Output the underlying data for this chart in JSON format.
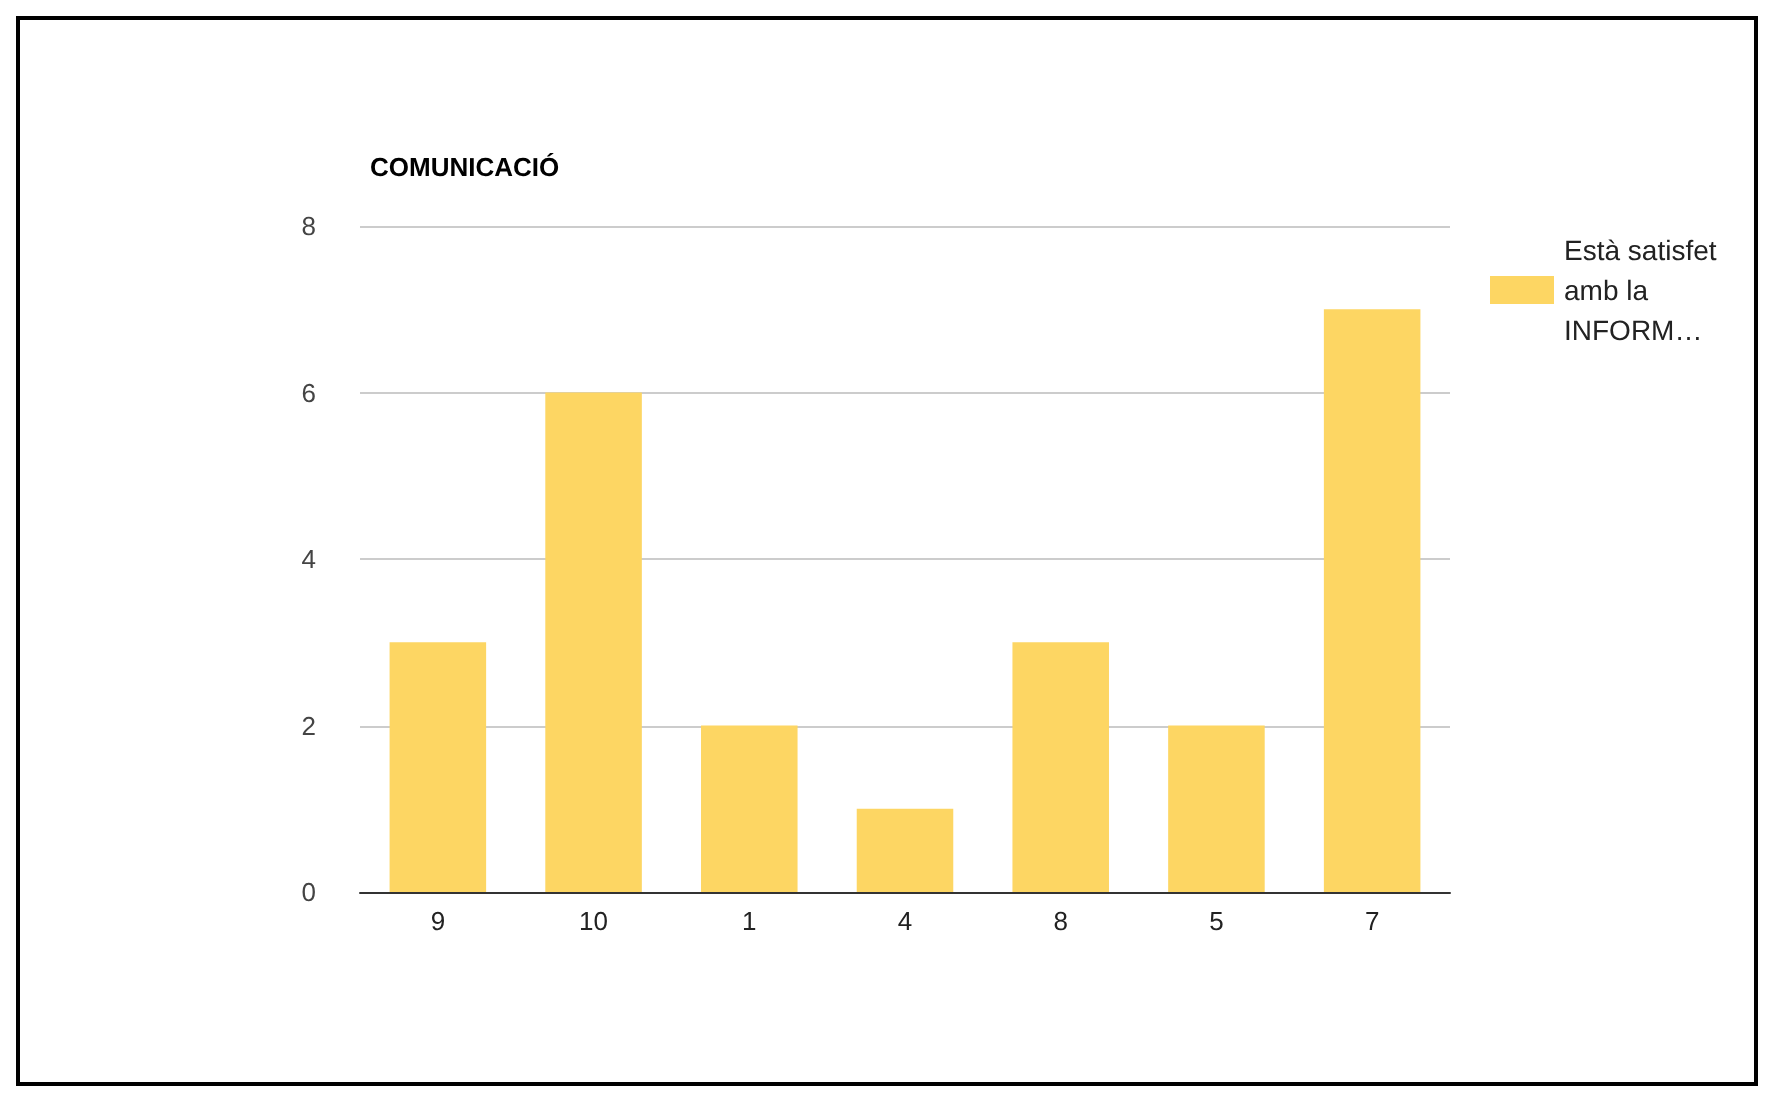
{
  "chart_data": {
    "type": "bar",
    "title": "COMUNICACIÓ",
    "categories": [
      "9",
      "10",
      "1",
      "4",
      "8",
      "5",
      "7"
    ],
    "series": [
      {
        "name": "Està satisfet amb la INFORM…",
        "color": "#fdd663",
        "values": [
          3,
          6,
          2,
          1,
          3,
          2,
          7
        ]
      }
    ],
    "ylim": [
      0,
      8
    ],
    "yticks": [
      0,
      2,
      4,
      6,
      8
    ],
    "grid": "y",
    "legend": "right"
  }
}
